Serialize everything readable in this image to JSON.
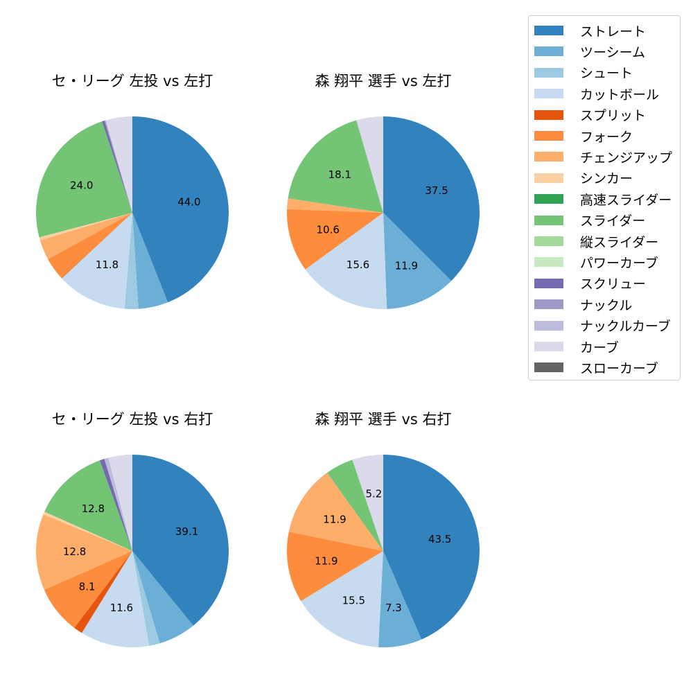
{
  "chart_data": [
    {
      "type": "pie",
      "title": "セ・リーグ 左投 vs 左打",
      "startangle": 90,
      "direction": "clockwise",
      "categories": [
        "ストレート",
        "ツーシーム",
        "シュート",
        "カットボール",
        "スプリット",
        "フォーク",
        "チェンジアップ",
        "シンカー",
        "スライダー",
        "スクリュー",
        "ナックル",
        "カーブ"
      ],
      "values": [
        44.0,
        5.0,
        2.3,
        11.8,
        0.1,
        3.8,
        3.4,
        0.5,
        24.0,
        0.4,
        0.2,
        4.5
      ],
      "labels_shown": [
        "44.0",
        "",
        "",
        "11.8",
        "",
        "",
        "",
        "",
        "24.0",
        "",
        "",
        ""
      ]
    },
    {
      "type": "pie",
      "title": "森 翔平 選手 vs 左打",
      "startangle": 90,
      "direction": "clockwise",
      "categories": [
        "ストレート",
        "ツーシーム",
        "カットボール",
        "フォーク",
        "チェンジアップ",
        "スライダー",
        "カーブ"
      ],
      "values": [
        37.5,
        11.9,
        15.6,
        10.6,
        1.8,
        18.1,
        4.5
      ],
      "labels_shown": [
        "37.5",
        "11.9",
        "15.6",
        "10.6",
        "",
        "18.1",
        ""
      ]
    },
    {
      "type": "pie",
      "title": "セ・リーグ 左投 vs 右打",
      "startangle": 90,
      "direction": "clockwise",
      "categories": [
        "ストレート",
        "ツーシーム",
        "シュート",
        "カットボール",
        "スプリット",
        "フォーク",
        "チェンジアップ",
        "シンカー",
        "スライダー",
        "スクリュー",
        "ナックルカーブ",
        "カーブ"
      ],
      "values": [
        39.1,
        6.3,
        1.8,
        11.6,
        1.5,
        8.1,
        12.8,
        0.5,
        12.8,
        0.8,
        0.7,
        4.0
      ],
      "labels_shown": [
        "39.1",
        "",
        "",
        "11.6",
        "",
        "8.1",
        "12.8",
        "",
        "12.8",
        "",
        "",
        ""
      ]
    },
    {
      "type": "pie",
      "title": "森 翔平 選手 vs 右打",
      "startangle": 90,
      "direction": "clockwise",
      "categories": [
        "ストレート",
        "ツーシーム",
        "カットボール",
        "フォーク",
        "チェンジアップ",
        "スライダー",
        "カーブ"
      ],
      "values": [
        43.5,
        7.3,
        15.5,
        11.9,
        11.9,
        4.7,
        5.2
      ],
      "labels_shown": [
        "43.5",
        "7.3",
        "15.5",
        "11.9",
        "11.9",
        "",
        "5.2"
      ]
    }
  ],
  "colors": {
    "ストレート": "#3182bd",
    "ツーシーム": "#6baed6",
    "シュート": "#9ecae1",
    "カットボール": "#c6dbef",
    "スプリット": "#e6550d",
    "フォーク": "#fd8d3c",
    "チェンジアップ": "#fdae6b",
    "シンカー": "#fdd0a2",
    "高速スライダー": "#31a354",
    "スライダー": "#74c476",
    "縦スライダー": "#a1d99b",
    "パワーカーブ": "#c7e9c0",
    "スクリュー": "#756bb1",
    "ナックル": "#9e9ac8",
    "ナックルカーブ": "#bcbddc",
    "カーブ": "#dadaeb",
    "スローカーブ": "#636363"
  },
  "legend": {
    "position": "upper right",
    "items": [
      {
        "label": "ストレート",
        "color": "#3182bd"
      },
      {
        "label": "ツーシーム",
        "color": "#6baed6"
      },
      {
        "label": "シュート",
        "color": "#9ecae1"
      },
      {
        "label": "カットボール",
        "color": "#c6dbef"
      },
      {
        "label": "スプリット",
        "color": "#e6550d"
      },
      {
        "label": "フォーク",
        "color": "#fd8d3c"
      },
      {
        "label": "チェンジアップ",
        "color": "#fdae6b"
      },
      {
        "label": "シンカー",
        "color": "#fdd0a2"
      },
      {
        "label": "高速スライダー",
        "color": "#31a354"
      },
      {
        "label": "スライダー",
        "color": "#74c476"
      },
      {
        "label": "縦スライダー",
        "color": "#a1d99b"
      },
      {
        "label": "パワーカーブ",
        "color": "#c7e9c0"
      },
      {
        "label": "スクリュー",
        "color": "#756bb1"
      },
      {
        "label": "ナックル",
        "color": "#9e9ac8"
      },
      {
        "label": "ナックルカーブ",
        "color": "#bcbddc"
      },
      {
        "label": "カーブ",
        "color": "#dadaeb"
      },
      {
        "label": "スローカーブ",
        "color": "#636363"
      }
    ]
  }
}
